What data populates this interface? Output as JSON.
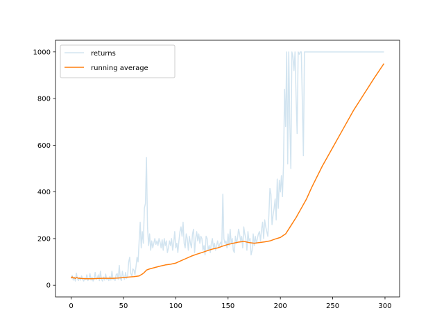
{
  "chart_data": {
    "type": "line",
    "title": "",
    "xlabel": "",
    "ylabel": "",
    "xlim": [
      -14.95,
      313.95
    ],
    "ylim": [
      -50,
      1050
    ],
    "xticks": [
      0,
      50,
      100,
      150,
      200,
      250,
      300
    ],
    "yticks": [
      0,
      200,
      400,
      600,
      800,
      1000
    ],
    "grid": false,
    "legend": "top-left",
    "series": [
      {
        "name": "returns",
        "color": "#1f77b4",
        "alpha": 0.2,
        "points": [
          [
            0,
            30
          ],
          [
            1,
            42
          ],
          [
            2,
            22
          ],
          [
            3,
            35
          ],
          [
            4,
            18
          ],
          [
            5,
            52
          ],
          [
            6,
            28
          ],
          [
            7,
            20
          ],
          [
            8,
            33
          ],
          [
            9,
            22
          ],
          [
            10,
            40
          ],
          [
            11,
            25
          ],
          [
            12,
            18
          ],
          [
            13,
            30
          ],
          [
            14,
            24
          ],
          [
            15,
            45
          ],
          [
            16,
            20
          ],
          [
            17,
            28
          ],
          [
            18,
            50
          ],
          [
            19,
            22
          ],
          [
            20,
            35
          ],
          [
            21,
            18
          ],
          [
            22,
            28
          ],
          [
            23,
            55
          ],
          [
            24,
            25
          ],
          [
            25,
            30
          ],
          [
            26,
            45
          ],
          [
            27,
            20
          ],
          [
            28,
            60
          ],
          [
            29,
            25
          ],
          [
            30,
            18
          ],
          [
            31,
            35
          ],
          [
            32,
            22
          ],
          [
            33,
            48
          ],
          [
            34,
            25
          ],
          [
            35,
            30
          ],
          [
            36,
            20
          ],
          [
            37,
            38
          ],
          [
            38,
            22
          ],
          [
            39,
            60
          ],
          [
            40,
            25
          ],
          [
            41,
            30
          ],
          [
            42,
            20
          ],
          [
            43,
            45
          ],
          [
            44,
            50
          ],
          [
            45,
            25
          ],
          [
            46,
            85
          ],
          [
            47,
            30
          ],
          [
            48,
            20
          ],
          [
            49,
            60
          ],
          [
            50,
            35
          ],
          [
            51,
            25
          ],
          [
            52,
            55
          ],
          [
            53,
            30
          ],
          [
            54,
            40
          ],
          [
            55,
            100
          ],
          [
            56,
            120
          ],
          [
            57,
            50
          ],
          [
            58,
            40
          ],
          [
            59,
            70
          ],
          [
            60,
            65
          ],
          [
            61,
            45
          ],
          [
            62,
            80
          ],
          [
            63,
            120
          ],
          [
            64,
            100
          ],
          [
            65,
            190
          ],
          [
            66,
            270
          ],
          [
            67,
            160
          ],
          [
            68,
            230
          ],
          [
            69,
            180
          ],
          [
            70,
            330
          ],
          [
            71,
            350
          ],
          [
            72,
            548
          ],
          [
            73,
            250
          ],
          [
            74,
            170
          ],
          [
            75,
            220
          ],
          [
            76,
            150
          ],
          [
            77,
            190
          ],
          [
            78,
            160
          ],
          [
            79,
            180
          ],
          [
            80,
            200
          ],
          [
            81,
            175
          ],
          [
            82,
            190
          ],
          [
            83,
            170
          ],
          [
            84,
            200
          ],
          [
            85,
            185
          ],
          [
            86,
            160
          ],
          [
            87,
            195
          ],
          [
            88,
            150
          ],
          [
            89,
            200
          ],
          [
            90,
            170
          ],
          [
            91,
            190
          ],
          [
            92,
            140
          ],
          [
            93,
            160
          ],
          [
            94,
            190
          ],
          [
            95,
            170
          ],
          [
            96,
            200
          ],
          [
            97,
            150
          ],
          [
            98,
            180
          ],
          [
            99,
            230
          ],
          [
            100,
            160
          ],
          [
            101,
            180
          ],
          [
            102,
            140
          ],
          [
            103,
            190
          ],
          [
            104,
            230
          ],
          [
            105,
            250
          ],
          [
            106,
            210
          ],
          [
            107,
            270
          ],
          [
            108,
            180
          ],
          [
            109,
            160
          ],
          [
            110,
            220
          ],
          [
            111,
            200
          ],
          [
            112,
            150
          ],
          [
            113,
            210
          ],
          [
            114,
            180
          ],
          [
            115,
            160
          ],
          [
            116,
            220
          ],
          [
            117,
            240
          ],
          [
            118,
            140
          ],
          [
            119,
            200
          ],
          [
            120,
            230
          ],
          [
            121,
            190
          ],
          [
            122,
            220
          ],
          [
            123,
            180
          ],
          [
            124,
            210
          ],
          [
            125,
            200
          ],
          [
            126,
            150
          ],
          [
            127,
            170
          ],
          [
            128,
            130
          ],
          [
            129,
            210
          ],
          [
            130,
            200
          ],
          [
            131,
            150
          ],
          [
            132,
            170
          ],
          [
            133,
            140
          ],
          [
            134,
            180
          ],
          [
            135,
            200
          ],
          [
            136,
            160
          ],
          [
            137,
            180
          ],
          [
            138,
            150
          ],
          [
            139,
            170
          ],
          [
            140,
            190
          ],
          [
            141,
            160
          ],
          [
            142,
            175
          ],
          [
            143,
            185
          ],
          [
            144,
            170
          ],
          [
            145,
            390
          ],
          [
            146,
            200
          ],
          [
            147,
            180
          ],
          [
            148,
            190
          ],
          [
            149,
            160
          ],
          [
            150,
            220
          ],
          [
            151,
            170
          ],
          [
            152,
            240
          ],
          [
            153,
            180
          ],
          [
            154,
            200
          ],
          [
            155,
            150
          ],
          [
            156,
            140
          ],
          [
            157,
            210
          ],
          [
            158,
            180
          ],
          [
            159,
            200
          ],
          [
            160,
            240
          ],
          [
            161,
            220
          ],
          [
            162,
            190
          ],
          [
            163,
            210
          ],
          [
            164,
            160
          ],
          [
            165,
            250
          ],
          [
            166,
            220
          ],
          [
            167,
            200
          ],
          [
            168,
            150
          ],
          [
            169,
            230
          ],
          [
            170,
            190
          ],
          [
            171,
            200
          ],
          [
            172,
            130
          ],
          [
            173,
            150
          ],
          [
            174,
            220
          ],
          [
            175,
            170
          ],
          [
            176,
            210
          ],
          [
            177,
            180
          ],
          [
            178,
            200
          ],
          [
            179,
            220
          ],
          [
            180,
            230
          ],
          [
            181,
            190
          ],
          [
            182,
            240
          ],
          [
            183,
            270
          ],
          [
            184,
            200
          ],
          [
            185,
            280
          ],
          [
            186,
            250
          ],
          [
            187,
            230
          ],
          [
            188,
            210
          ],
          [
            189,
            300
          ],
          [
            190,
            415
          ],
          [
            191,
            390
          ],
          [
            192,
            260
          ],
          [
            193,
            300
          ],
          [
            194,
            330
          ],
          [
            195,
            370
          ],
          [
            196,
            280
          ],
          [
            197,
            455
          ],
          [
            198,
            330
          ],
          [
            199,
            450
          ],
          [
            200,
            400
          ],
          [
            201,
            470
          ],
          [
            202,
            380
          ],
          [
            203,
            520
          ],
          [
            204,
            840
          ],
          [
            205,
            680
          ],
          [
            206,
            1000
          ],
          [
            207,
            520
          ],
          [
            208,
            1000
          ],
          [
            209,
            700
          ],
          [
            210,
            500
          ],
          [
            211,
            1000
          ],
          [
            212,
            980
          ],
          [
            213,
            920
          ],
          [
            214,
            1000
          ],
          [
            215,
            810
          ],
          [
            216,
            650
          ],
          [
            217,
            1000
          ],
          [
            218,
            990
          ],
          [
            219,
            1000
          ],
          [
            220,
            1000
          ],
          [
            221,
            780
          ],
          [
            222,
            555
          ],
          [
            223,
            1000
          ],
          [
            224,
            1000
          ],
          [
            225,
            1000
          ],
          [
            230,
            1000
          ],
          [
            240,
            1000
          ],
          [
            250,
            1000
          ],
          [
            260,
            1000
          ],
          [
            270,
            1000
          ],
          [
            280,
            1000
          ],
          [
            290,
            1000
          ],
          [
            299,
            1000
          ]
        ]
      },
      {
        "name": "running average",
        "color": "#ff7f0e",
        "alpha": 1,
        "points": [
          [
            0,
            30
          ],
          [
            1,
            36
          ],
          [
            2,
            31
          ],
          [
            3,
            32
          ],
          [
            4,
            29
          ],
          [
            5,
            33
          ],
          [
            6,
            32
          ],
          [
            7,
            30
          ],
          [
            8,
            30
          ],
          [
            10,
            29
          ],
          [
            15,
            28
          ],
          [
            20,
            28
          ],
          [
            25,
            29
          ],
          [
            30,
            30
          ],
          [
            35,
            30
          ],
          [
            40,
            30
          ],
          [
            45,
            31
          ],
          [
            50,
            33
          ],
          [
            55,
            35
          ],
          [
            60,
            37
          ],
          [
            65,
            40
          ],
          [
            68,
            48
          ],
          [
            70,
            55
          ],
          [
            72,
            65
          ],
          [
            75,
            70
          ],
          [
            80,
            76
          ],
          [
            85,
            82
          ],
          [
            90,
            87
          ],
          [
            95,
            90
          ],
          [
            100,
            95
          ],
          [
            105,
            105
          ],
          [
            110,
            115
          ],
          [
            115,
            125
          ],
          [
            120,
            133
          ],
          [
            125,
            140
          ],
          [
            130,
            148
          ],
          [
            135,
            155
          ],
          [
            140,
            160
          ],
          [
            145,
            168
          ],
          [
            150,
            175
          ],
          [
            155,
            180
          ],
          [
            160,
            185
          ],
          [
            165,
            188
          ],
          [
            170,
            183
          ],
          [
            175,
            180
          ],
          [
            180,
            183
          ],
          [
            185,
            186
          ],
          [
            190,
            190
          ],
          [
            195,
            198
          ],
          [
            200,
            205
          ],
          [
            205,
            220
          ],
          [
            210,
            255
          ],
          [
            215,
            290
          ],
          [
            220,
            330
          ],
          [
            225,
            370
          ],
          [
            230,
            420
          ],
          [
            240,
            510
          ],
          [
            250,
            590
          ],
          [
            260,
            670
          ],
          [
            270,
            750
          ],
          [
            280,
            820
          ],
          [
            290,
            890
          ],
          [
            299,
            950
          ]
        ]
      }
    ]
  }
}
